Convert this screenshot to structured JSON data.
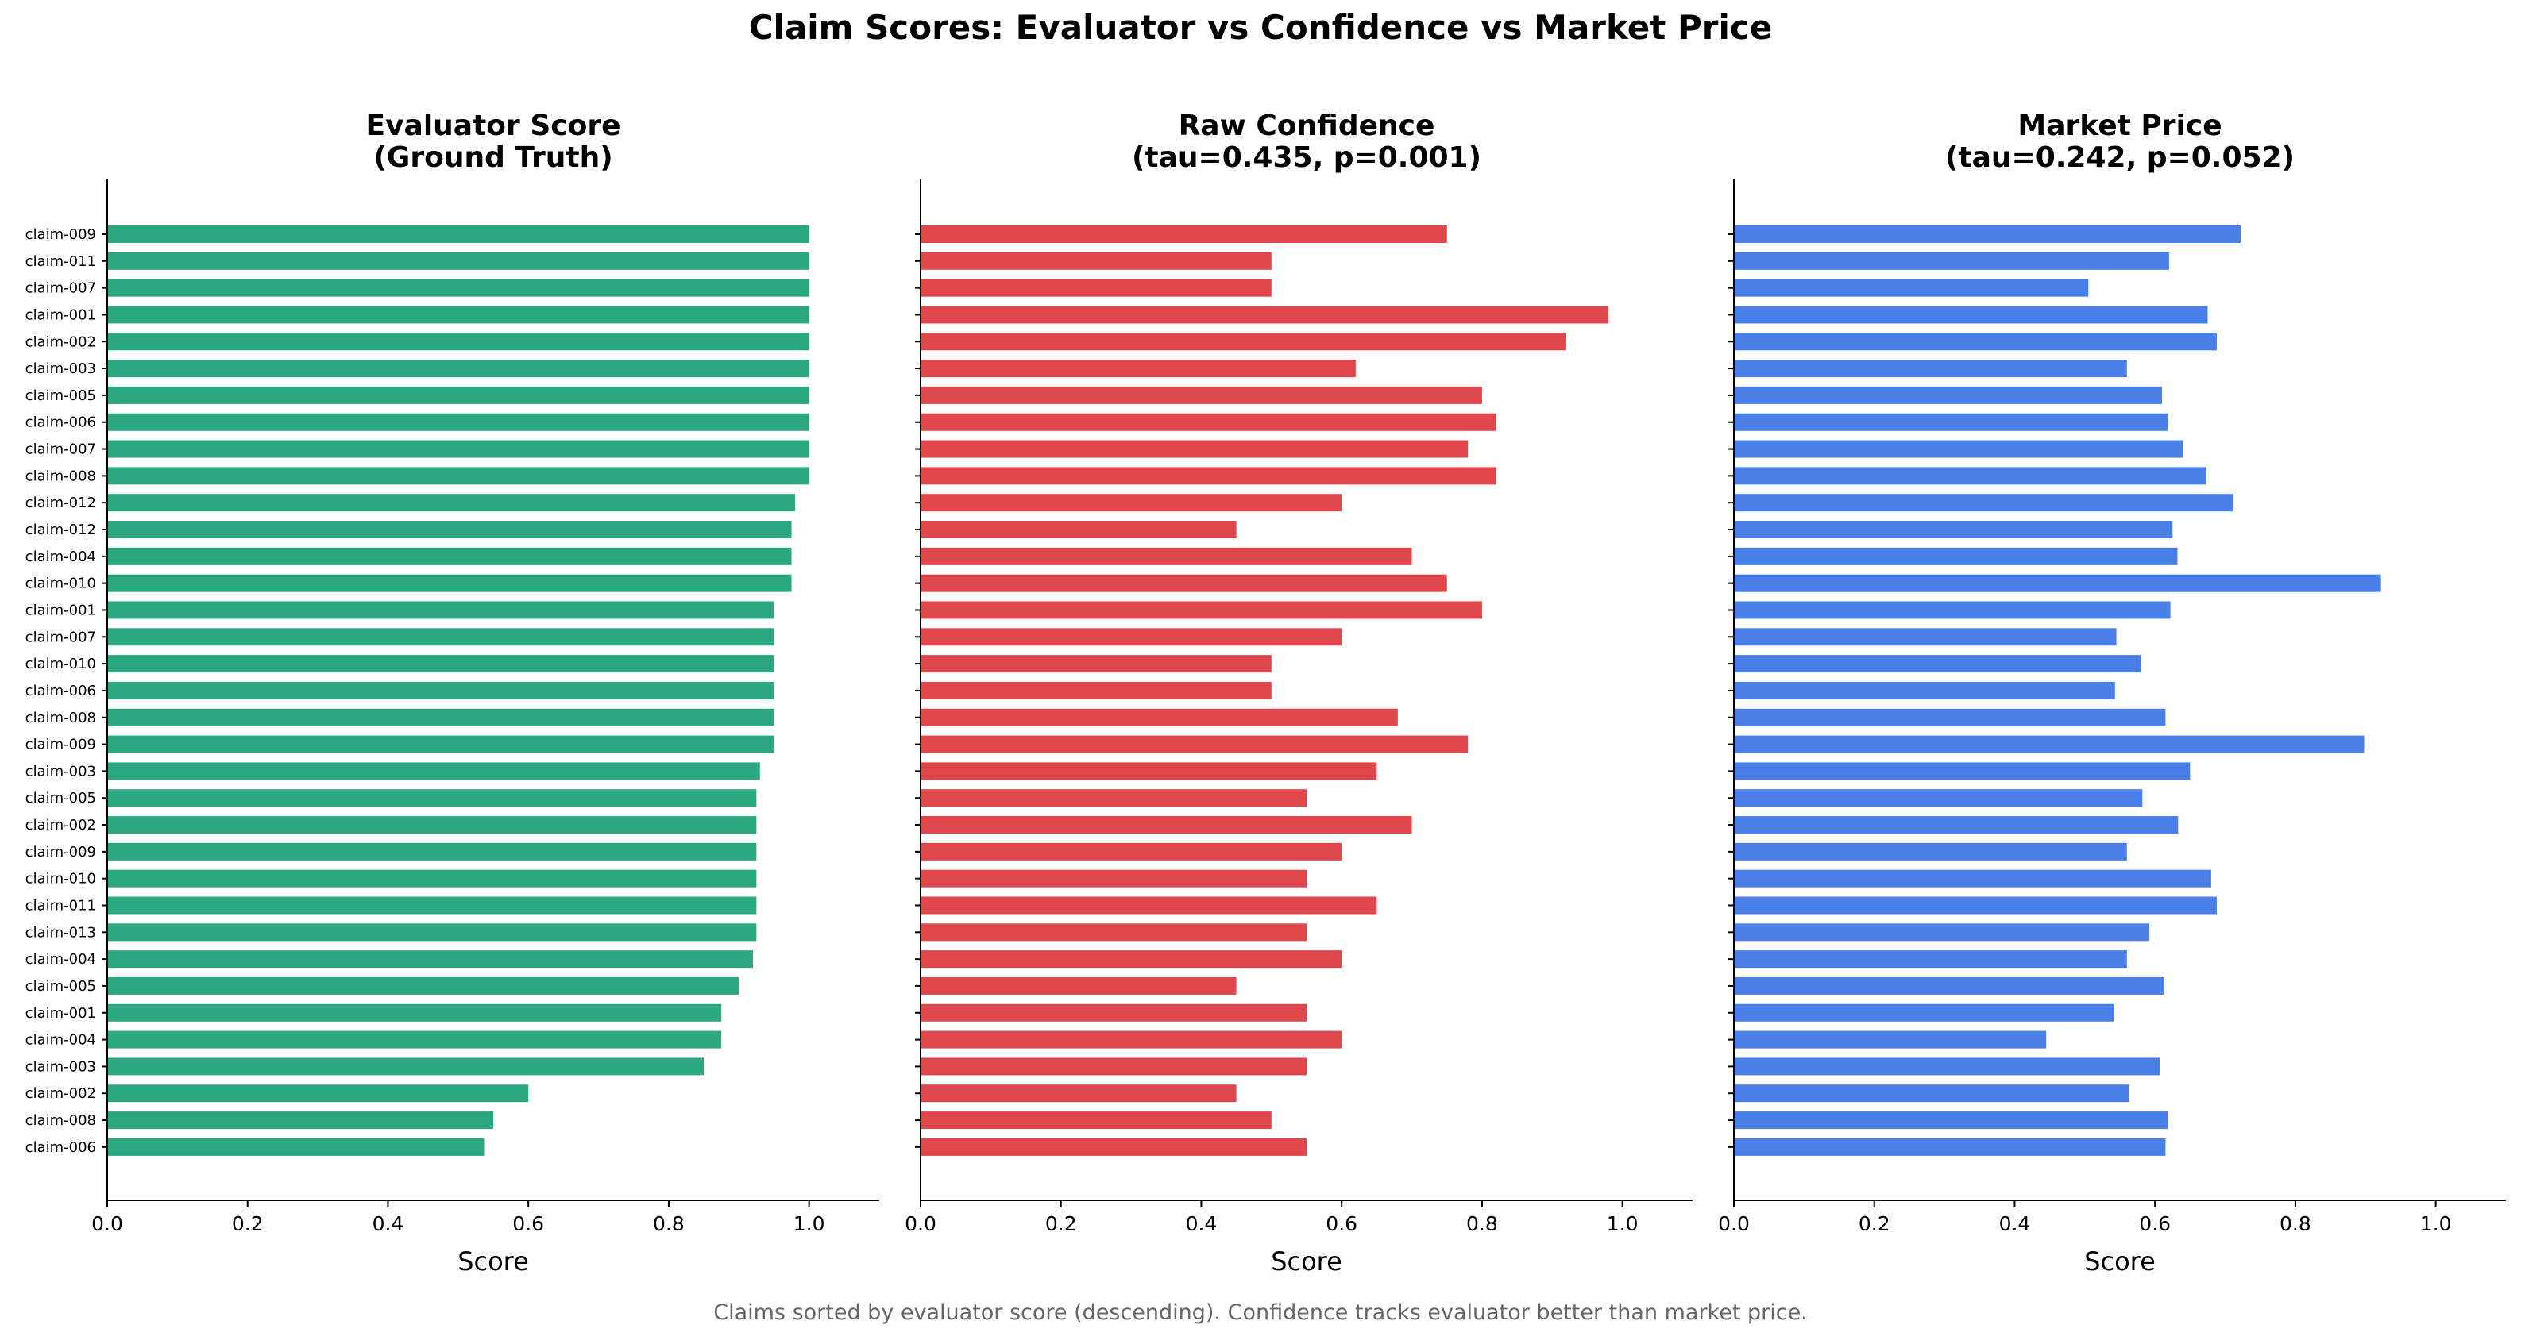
{
  "title": "Claim Scores: Evaluator vs Confidence vs Market Price",
  "caption": "Claims sorted by evaluator score (descending). Confidence tracks evaluator better than market price.",
  "colors": {
    "evaluator": "#2ca880",
    "confidence": "#e0474c",
    "market": "#4a7fe8"
  },
  "chart_data": [
    {
      "type": "bar",
      "orientation": "horizontal",
      "title": "Evaluator Score\n(Ground Truth)",
      "xlabel": "Score",
      "xlim": [
        0,
        1.1
      ],
      "xticks": [
        "0.0",
        "0.2",
        "0.4",
        "0.6",
        "0.8",
        "1.0"
      ],
      "categories": [
        "claim-009",
        "claim-011",
        "claim-007",
        "claim-001",
        "claim-002",
        "claim-003",
        "claim-005",
        "claim-006",
        "claim-007",
        "claim-008",
        "claim-012",
        "claim-012",
        "claim-004",
        "claim-010",
        "claim-001",
        "claim-007",
        "claim-010",
        "claim-006",
        "claim-008",
        "claim-009",
        "claim-003",
        "claim-005",
        "claim-002",
        "claim-009",
        "claim-010",
        "claim-011",
        "claim-013",
        "claim-004",
        "claim-005",
        "claim-001",
        "claim-004",
        "claim-003",
        "claim-002",
        "claim-008",
        "claim-006"
      ],
      "values": [
        1.0,
        1.0,
        1.0,
        1.0,
        1.0,
        1.0,
        1.0,
        1.0,
        1.0,
        1.0,
        0.98,
        0.975,
        0.975,
        0.975,
        0.95,
        0.95,
        0.95,
        0.95,
        0.95,
        0.95,
        0.93,
        0.925,
        0.925,
        0.925,
        0.925,
        0.925,
        0.925,
        0.92,
        0.9,
        0.875,
        0.875,
        0.85,
        0.6,
        0.55,
        0.537
      ]
    },
    {
      "type": "bar",
      "orientation": "horizontal",
      "title": "Raw Confidence\n(tau=0.435, p=0.001)",
      "xlabel": "Score",
      "xlim": [
        0,
        1.1
      ],
      "xticks": [
        "0.0",
        "0.2",
        "0.4",
        "0.6",
        "0.8",
        "1.0"
      ],
      "values": [
        0.75,
        0.5,
        0.5,
        0.98,
        0.92,
        0.62,
        0.8,
        0.82,
        0.78,
        0.82,
        0.6,
        0.45,
        0.7,
        0.75,
        0.8,
        0.6,
        0.5,
        0.5,
        0.68,
        0.78,
        0.65,
        0.55,
        0.7,
        0.6,
        0.55,
        0.65,
        0.55,
        0.6,
        0.45,
        0.55,
        0.6,
        0.55,
        0.45,
        0.5,
        0.55
      ]
    },
    {
      "type": "bar",
      "orientation": "horizontal",
      "title": "Market Price\n(tau=0.242, p=0.052)",
      "xlabel": "Score",
      "xlim": [
        0,
        1.1
      ],
      "xticks": [
        "0.0",
        "0.2",
        "0.4",
        "0.6",
        "0.8",
        "1.0"
      ],
      "values": [
        0.722,
        0.62,
        0.505,
        0.675,
        0.688,
        0.56,
        0.61,
        0.618,
        0.64,
        0.673,
        0.712,
        0.625,
        0.632,
        0.922,
        0.622,
        0.545,
        0.58,
        0.543,
        0.615,
        0.898,
        0.65,
        0.582,
        0.633,
        0.56,
        0.68,
        0.688,
        0.592,
        0.56,
        0.613,
        0.542,
        0.445,
        0.607,
        0.563,
        0.618,
        0.615
      ]
    }
  ]
}
